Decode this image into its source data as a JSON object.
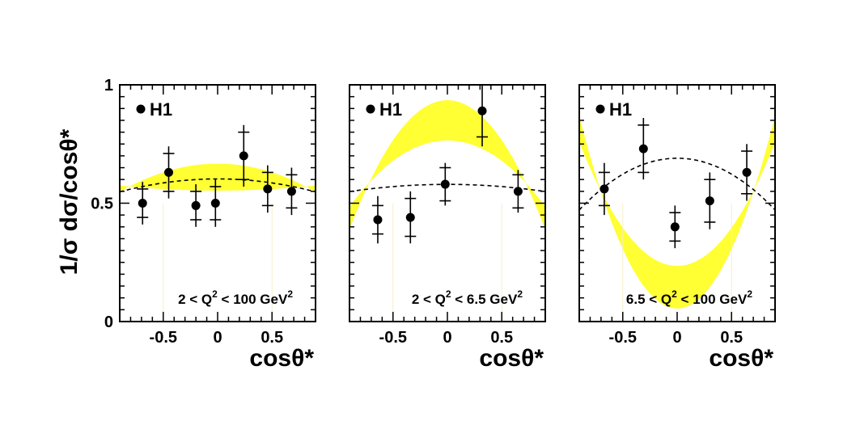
{
  "figure": {
    "ylabel": "1/σ dσ/cosθ*",
    "y_ticks": [
      "0",
      "0.5",
      "1"
    ],
    "colors": {
      "band": "#ffff33",
      "marker": "#000000",
      "dashed": "#000000"
    }
  },
  "chart_data": [
    {
      "type": "scatter",
      "experiment": "H1",
      "range_label": {
        "pre": "2 < Q",
        "sup": "2",
        "mid": " < 100 GeV",
        "sup2": "2"
      },
      "xlabel": "cosθ*",
      "xlim": [
        -0.9,
        0.9
      ],
      "ylim": [
        0,
        1
      ],
      "x_ticks": [
        "-0.5",
        "0",
        "0.5"
      ],
      "points": [
        {
          "x": -0.69,
          "y": 0.5,
          "stat": 0.06,
          "total": 0.09
        },
        {
          "x": -0.45,
          "y": 0.63,
          "stat": 0.08,
          "total": 0.11
        },
        {
          "x": -0.2,
          "y": 0.49,
          "stat": 0.06,
          "total": 0.09
        },
        {
          "x": -0.02,
          "y": 0.5,
          "stat": 0.07,
          "total": 0.1
        },
        {
          "x": 0.24,
          "y": 0.7,
          "stat": 0.1,
          "total": 0.13
        },
        {
          "x": 0.46,
          "y": 0.56,
          "stat": 0.07,
          "total": 0.1
        },
        {
          "x": 0.68,
          "y": 0.55,
          "stat": 0.07,
          "total": 0.1
        }
      ],
      "band": {
        "a_center": 0.59,
        "b_center": -0.04,
        "half_width_0": 0.028,
        "half_width_1": -0.058
      },
      "dashed": {
        "a": 0.58,
        "b": -0.045
      }
    },
    {
      "type": "scatter",
      "experiment": "H1",
      "range_label": {
        "pre": "2 < Q",
        "sup": "2",
        "mid": " < 6.5 GeV",
        "sup2": "2"
      },
      "xlabel": "cosθ*",
      "xlim": [
        -0.9,
        0.9
      ],
      "ylim": [
        0,
        1
      ],
      "x_ticks": [
        "-0.5",
        "0",
        "0.5"
      ],
      "points": [
        {
          "x": -0.64,
          "y": 0.43,
          "stat": 0.06,
          "total": 0.1
        },
        {
          "x": -0.34,
          "y": 0.44,
          "stat": 0.08,
          "total": 0.11
        },
        {
          "x": -0.02,
          "y": 0.58,
          "stat": 0.07,
          "total": 0.09
        },
        {
          "x": 0.32,
          "y": 0.89,
          "stat": 0.11,
          "total": 0.15
        },
        {
          "x": 0.65,
          "y": 0.55,
          "stat": 0.07,
          "total": 0.09
        }
      ],
      "band": {
        "a_center": 0.68,
        "b_center": -0.34,
        "half_width_0": 0.03,
        "half_width_1": -0.11
      },
      "dashed": {
        "a": 0.567,
        "b": -0.025
      }
    },
    {
      "type": "scatter",
      "experiment": "H1",
      "range_label": {
        "pre": "6.5 < Q",
        "sup": "2",
        "mid": " < 100 GeV",
        "sup2": "2"
      },
      "xlabel": "cosθ*",
      "xlim": [
        -0.9,
        0.9
      ],
      "ylim": [
        0,
        1
      ],
      "x_ticks": [
        "-0.5",
        "0",
        "0.5"
      ],
      "points": [
        {
          "x": -0.67,
          "y": 0.56,
          "stat": 0.07,
          "total": 0.11
        },
        {
          "x": -0.31,
          "y": 0.73,
          "stat": 0.1,
          "total": 0.13
        },
        {
          "x": -0.02,
          "y": 0.4,
          "stat": 0.06,
          "total": 0.09
        },
        {
          "x": 0.3,
          "y": 0.51,
          "stat": 0.09,
          "total": 0.12
        },
        {
          "x": 0.64,
          "y": 0.63,
          "stat": 0.09,
          "total": 0.12
        }
      ],
      "band": {
        "a_center": 0.42,
        "b_center": 0.55,
        "half_width_0": 0.03,
        "half_width_1": -0.12
      },
      "dashed": {
        "a": 0.6,
        "b": -0.18
      }
    }
  ]
}
